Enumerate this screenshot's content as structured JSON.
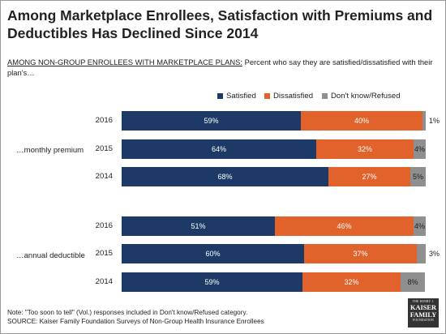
{
  "header": {
    "title": "Among Marketplace Enrollees, Satisfaction with Premiums and Deductibles Has Declined Since 2014",
    "subtitle_underlined": "AMONG NON-GROUP ENROLLEES WITH MARKETPLACE PLANS:",
    "subtitle_rest": " Percent who say they are satisfied/dissatisfied with their plan's…"
  },
  "colors": {
    "satisfied": "#1d3a66",
    "dissatisfied": "#e2622c",
    "dont_know": "#8f8f8f"
  },
  "chart_data": {
    "type": "bar",
    "orientation": "horizontal",
    "stacked": true,
    "legend": [
      "Satisfied",
      "Dissatisfied",
      "Don't know/Refused"
    ],
    "legend_placement": "top-right",
    "groups": [
      {
        "label": "…monthly premium",
        "rows": [
          {
            "year": "2016",
            "values": [
              59,
              40,
              1
            ],
            "labels": [
              "59%",
              "40%",
              "1%"
            ]
          },
          {
            "year": "2015",
            "values": [
              64,
              32,
              4
            ],
            "labels": [
              "64%",
              "32%",
              "4%"
            ]
          },
          {
            "year": "2014",
            "values": [
              68,
              27,
              5
            ],
            "labels": [
              "68%",
              "27%",
              "5%"
            ]
          }
        ]
      },
      {
        "label": "…annual deductible",
        "rows": [
          {
            "year": "2016",
            "values": [
              51,
              46,
              4
            ],
            "labels": [
              "51%",
              "46%",
              "4%"
            ]
          },
          {
            "year": "2015",
            "values": [
              60,
              37,
              3
            ],
            "labels": [
              "60%",
              "37%",
              "3%"
            ]
          },
          {
            "year": "2014",
            "values": [
              59,
              32,
              8
            ],
            "labels": [
              "59%",
              "32%",
              "8%"
            ]
          }
        ]
      }
    ]
  },
  "footer": {
    "note": "Note: \"Too soon to tell\" (Vol.) responses included in Don't know/Refused category.",
    "source": "SOURCE: Kaiser Family Foundation Surveys of Non-Group Health Insurance Enrollees"
  },
  "logo": {
    "line1": "THE HENRY J.",
    "line2a": "KAISER",
    "line2b": "FAMILY",
    "line3": "FOUNDATION"
  }
}
